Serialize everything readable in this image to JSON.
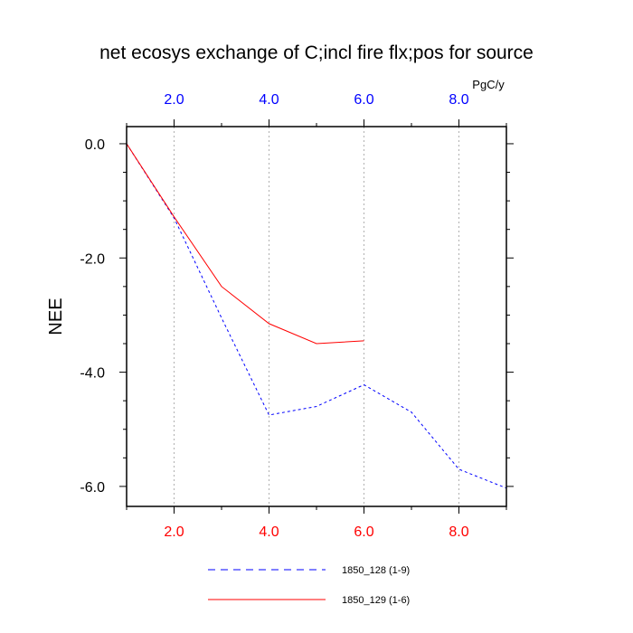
{
  "chart_data": {
    "type": "line",
    "title": "net ecosys exchange of C;incl fire flx;pos for source",
    "ylabel": "NEE",
    "units": "PgC/y",
    "xlim": [
      1,
      9
    ],
    "ylim": [
      -6.35,
      0.3
    ],
    "x_ticks": [
      2,
      4,
      6,
      8
    ],
    "x_tick_labels": [
      "2.0",
      "4.0",
      "6.0",
      "8.0"
    ],
    "y_ticks": [
      0,
      -2,
      -4,
      -6
    ],
    "y_tick_labels": [
      "0.0",
      "-2.0",
      "-4.0",
      "-6.0"
    ],
    "grid": "vertical-dotted",
    "legend_position": "bottom",
    "colors": {
      "bottom_ticks": "#ff0000",
      "top_ticks": "#0000ff",
      "series_1": "#0000ff",
      "series_2": "#ff0000",
      "grid": "#b0b0b0"
    },
    "series": [
      {
        "name": "1850_128 (1-9)",
        "style": "dashed",
        "x": [
          1,
          2,
          3,
          4,
          5,
          6,
          7,
          8,
          9
        ],
        "values": [
          0.0,
          -1.3,
          -3.05,
          -4.75,
          -4.6,
          -4.22,
          -4.7,
          -5.7,
          -6.03
        ]
      },
      {
        "name": "1850_129 (1-6)",
        "style": "solid",
        "x": [
          1,
          2,
          3,
          4,
          5,
          6
        ],
        "values": [
          0.0,
          -1.28,
          -2.5,
          -3.15,
          -3.5,
          -3.45
        ]
      }
    ]
  }
}
